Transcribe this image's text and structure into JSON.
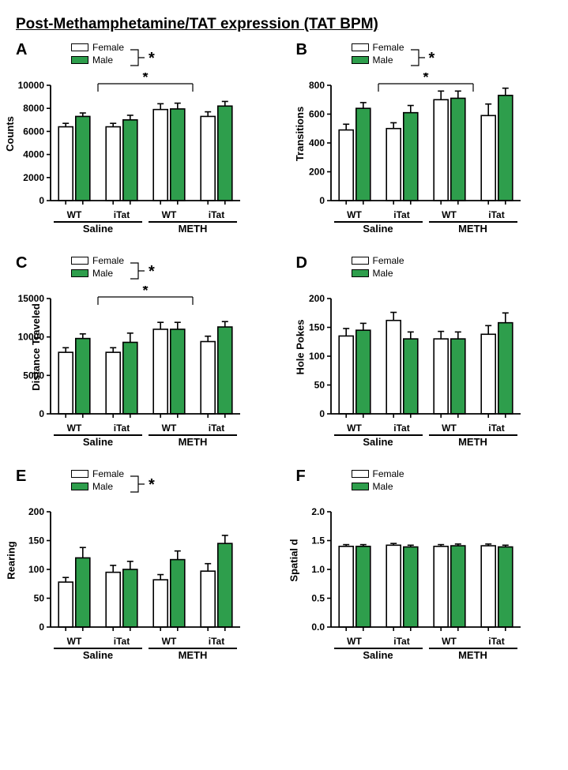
{
  "title": "Post-Methamphetamine/TAT expression (TAT BPM)",
  "colors": {
    "female": "#ffffff",
    "male": "#2e9e4c",
    "stroke": "#000000",
    "axis": "#000000"
  },
  "legend": {
    "female": "Female",
    "male": "Male"
  },
  "xcats": [
    "WT",
    "iTat",
    "WT",
    "iTat"
  ],
  "groups": [
    "Saline",
    "METH"
  ],
  "panels": [
    {
      "id": "A",
      "ylabel": "Counts",
      "ylim": [
        0,
        10000
      ],
      "ytick_step": 2000,
      "legend_star": true,
      "sig_bracket": true,
      "bars": [
        {
          "f": 6400,
          "fe": 300,
          "m": 7300,
          "me": 300
        },
        {
          "f": 6400,
          "fe": 300,
          "m": 7000,
          "me": 400
        },
        {
          "f": 7900,
          "fe": 500,
          "m": 7950,
          "me": 500
        },
        {
          "f": 7300,
          "fe": 400,
          "m": 8200,
          "me": 400
        }
      ]
    },
    {
      "id": "B",
      "ylabel": "Transitions",
      "ylim": [
        0,
        800
      ],
      "ytick_step": 200,
      "legend_star": true,
      "sig_bracket": true,
      "bars": [
        {
          "f": 490,
          "fe": 40,
          "m": 640,
          "me": 40
        },
        {
          "f": 500,
          "fe": 40,
          "m": 610,
          "me": 50
        },
        {
          "f": 700,
          "fe": 60,
          "m": 710,
          "me": 50
        },
        {
          "f": 590,
          "fe": 80,
          "m": 730,
          "me": 50
        }
      ]
    },
    {
      "id": "C",
      "ylabel": "Distance Traveled",
      "ylim": [
        0,
        15000
      ],
      "ytick_step": 5000,
      "legend_star": true,
      "sig_bracket": true,
      "bars": [
        {
          "f": 8000,
          "fe": 600,
          "m": 9800,
          "me": 600
        },
        {
          "f": 8000,
          "fe": 600,
          "m": 9300,
          "me": 1200
        },
        {
          "f": 11000,
          "fe": 900,
          "m": 11000,
          "me": 900
        },
        {
          "f": 9400,
          "fe": 700,
          "m": 11300,
          "me": 700
        }
      ]
    },
    {
      "id": "D",
      "ylabel": "Hole Pokes",
      "ylim": [
        0,
        200
      ],
      "ytick_step": 50,
      "legend_star": false,
      "sig_bracket": false,
      "bars": [
        {
          "f": 135,
          "fe": 13,
          "m": 145,
          "me": 12
        },
        {
          "f": 162,
          "fe": 14,
          "m": 130,
          "me": 12
        },
        {
          "f": 130,
          "fe": 13,
          "m": 130,
          "me": 12
        },
        {
          "f": 138,
          "fe": 15,
          "m": 158,
          "me": 17
        }
      ]
    },
    {
      "id": "E",
      "ylabel": "Rearing",
      "ylim": [
        0,
        200
      ],
      "ytick_step": 50,
      "legend_star": true,
      "sig_bracket": false,
      "bars": [
        {
          "f": 78,
          "fe": 8,
          "m": 120,
          "me": 18
        },
        {
          "f": 95,
          "fe": 12,
          "m": 100,
          "me": 14
        },
        {
          "f": 82,
          "fe": 9,
          "m": 117,
          "me": 15
        },
        {
          "f": 97,
          "fe": 13,
          "m": 145,
          "me": 14
        }
      ]
    },
    {
      "id": "F",
      "ylabel": "Spatial d",
      "ylim": [
        0,
        2.0
      ],
      "ytick_step": 0.5,
      "decimals": 1,
      "legend_star": false,
      "sig_bracket": false,
      "bars": [
        {
          "f": 1.4,
          "fe": 0.03,
          "m": 1.4,
          "me": 0.03
        },
        {
          "f": 1.42,
          "fe": 0.03,
          "m": 1.39,
          "me": 0.03
        },
        {
          "f": 1.4,
          "fe": 0.03,
          "m": 1.41,
          "me": 0.03
        },
        {
          "f": 1.41,
          "fe": 0.03,
          "m": 1.39,
          "me": 0.03
        }
      ]
    }
  ]
}
